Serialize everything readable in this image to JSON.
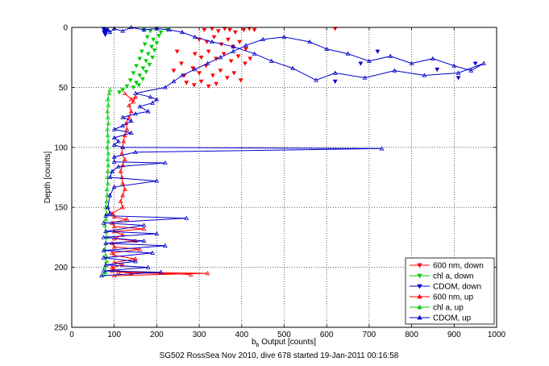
{
  "caption": "SG502 RossSea Nov 2010, dive 678 started 19-Jan-2011 00:16:58",
  "chart_data": {
    "type": "scatter",
    "xlabel_main": "b",
    "xlabel_sub": "b",
    "xlabel_rest": " Output [counts]",
    "ylabel": "Depth [counts]",
    "xlim": [
      0,
      1000
    ],
    "ylim": [
      250,
      0
    ],
    "xticks": [
      0,
      100,
      200,
      300,
      400,
      500,
      600,
      700,
      800,
      900,
      1000
    ],
    "yticks": [
      0,
      50,
      100,
      150,
      200,
      250
    ],
    "grid": true,
    "legend_position": "bottom-right",
    "series": [
      {
        "name": "600 nm, down",
        "color": "#ff0000",
        "marker": "triangle-down",
        "connected": false,
        "points": [
          [
            312,
            2
          ],
          [
            330,
            1
          ],
          [
            345,
            3
          ],
          [
            360,
            1
          ],
          [
            372,
            2
          ],
          [
            385,
            4
          ],
          [
            405,
            2
          ],
          [
            418,
            1
          ],
          [
            430,
            2
          ],
          [
            620,
            1
          ],
          [
            300,
            10
          ],
          [
            318,
            12
          ],
          [
            335,
            8
          ],
          [
            352,
            14
          ],
          [
            368,
            10
          ],
          [
            380,
            16
          ],
          [
            395,
            12
          ],
          [
            410,
            18
          ],
          [
            290,
            22
          ],
          [
            305,
            25
          ],
          [
            322,
            20
          ],
          [
            340,
            26
          ],
          [
            358,
            22
          ],
          [
            375,
            28
          ],
          [
            392,
            24
          ],
          [
            408,
            30
          ],
          [
            420,
            26
          ],
          [
            285,
            34
          ],
          [
            300,
            38
          ],
          [
            316,
            32
          ],
          [
            332,
            40
          ],
          [
            350,
            36
          ],
          [
            366,
            42
          ],
          [
            382,
            38
          ],
          [
            398,
            44
          ],
          [
            270,
            46
          ],
          [
            288,
            48
          ],
          [
            305,
            45
          ],
          [
            322,
            49
          ],
          [
            340,
            47
          ],
          [
            258,
            30
          ],
          [
            248,
            20
          ],
          [
            265,
            40
          ],
          [
            240,
            36
          ]
        ]
      },
      {
        "name": "chl a, down",
        "color": "#00cc00",
        "marker": "triangle-down",
        "connected": false,
        "points": [
          [
            170,
            2
          ],
          [
            185,
            3
          ],
          [
            200,
            1
          ],
          [
            210,
            4
          ],
          [
            225,
            2
          ],
          [
            178,
            8
          ],
          [
            192,
            10
          ],
          [
            205,
            7
          ],
          [
            172,
            14
          ],
          [
            188,
            16
          ],
          [
            200,
            13
          ],
          [
            165,
            20
          ],
          [
            180,
            22
          ],
          [
            195,
            19
          ],
          [
            160,
            26
          ],
          [
            175,
            28
          ],
          [
            190,
            25
          ],
          [
            152,
            32
          ],
          [
            168,
            34
          ],
          [
            183,
            31
          ],
          [
            145,
            38
          ],
          [
            160,
            40
          ],
          [
            175,
            37
          ],
          [
            138,
            44
          ],
          [
            152,
            46
          ],
          [
            167,
            43
          ],
          [
            130,
            49
          ],
          [
            145,
            50
          ],
          [
            158,
            48
          ],
          [
            120,
            52
          ],
          [
            112,
            54
          ]
        ]
      },
      {
        "name": "CDOM, down",
        "color": "#0000cc",
        "marker": "triangle-down",
        "connected": false,
        "points": [
          [
            75,
            1
          ],
          [
            78,
            3
          ],
          [
            80,
            5
          ],
          [
            82,
            2
          ],
          [
            76,
            4
          ],
          [
            79,
            6
          ],
          [
            77,
            2
          ],
          [
            81,
            4
          ],
          [
            620,
            45
          ],
          [
            680,
            30
          ],
          [
            720,
            20
          ],
          [
            950,
            30
          ],
          [
            910,
            42
          ],
          [
            860,
            35
          ]
        ]
      },
      {
        "name": "600 nm, up",
        "color": "#ff0000",
        "marker": "triangle-up",
        "connected": true,
        "points": [
          [
            100,
            207
          ],
          [
            320,
            205
          ],
          [
            110,
            204
          ],
          [
            280,
            206
          ],
          [
            95,
            203
          ],
          [
            140,
            205
          ],
          [
            100,
            202
          ],
          [
            95,
            200
          ],
          [
            120,
            198
          ],
          [
            100,
            196
          ],
          [
            150,
            193
          ],
          [
            100,
            190
          ],
          [
            95,
            188
          ],
          [
            160,
            185
          ],
          [
            100,
            183
          ],
          [
            95,
            180
          ],
          [
            150,
            178
          ],
          [
            100,
            176
          ],
          [
            120,
            173
          ],
          [
            100,
            170
          ],
          [
            170,
            168
          ],
          [
            100,
            166
          ],
          [
            95,
            163
          ],
          [
            130,
            160
          ],
          [
            100,
            158
          ],
          [
            95,
            155
          ],
          [
            120,
            150
          ],
          [
            115,
            145
          ],
          [
            120,
            140
          ],
          [
            125,
            135
          ],
          [
            120,
            130
          ],
          [
            118,
            125
          ],
          [
            115,
            120
          ],
          [
            120,
            115
          ],
          [
            125,
            110
          ],
          [
            118,
            105
          ],
          [
            120,
            100
          ],
          [
            122,
            95
          ],
          [
            125,
            90
          ],
          [
            130,
            85
          ],
          [
            128,
            80
          ],
          [
            135,
            75
          ],
          [
            140,
            70
          ],
          [
            135,
            65
          ],
          [
            145,
            62
          ],
          [
            150,
            58
          ],
          [
            140,
            60
          ],
          [
            125,
            55
          ]
        ]
      },
      {
        "name": "chl a, up",
        "color": "#00cc00",
        "marker": "triangle-up",
        "connected": true,
        "points": [
          [
            75,
            206
          ],
          [
            80,
            204
          ],
          [
            78,
            200
          ],
          [
            82,
            195
          ],
          [
            80,
            190
          ],
          [
            78,
            185
          ],
          [
            80,
            180
          ],
          [
            82,
            175
          ],
          [
            80,
            170
          ],
          [
            78,
            165
          ],
          [
            80,
            160
          ],
          [
            82,
            155
          ],
          [
            80,
            150
          ],
          [
            82,
            145
          ],
          [
            84,
            140
          ],
          [
            83,
            135
          ],
          [
            85,
            130
          ],
          [
            84,
            125
          ],
          [
            85,
            120
          ],
          [
            86,
            115
          ],
          [
            85,
            110
          ],
          [
            86,
            105
          ],
          [
            84,
            100
          ],
          [
            86,
            95
          ],
          [
            85,
            90
          ],
          [
            84,
            85
          ],
          [
            86,
            80
          ],
          [
            85,
            75
          ],
          [
            84,
            70
          ],
          [
            86,
            65
          ],
          [
            85,
            60
          ],
          [
            88,
            55
          ],
          [
            90,
            52
          ]
        ]
      },
      {
        "name": "CDOM, up",
        "color": "#0000cc",
        "marker": "triangle-up",
        "connected": true,
        "points": [
          [
            70,
            207
          ],
          [
            210,
            204
          ],
          [
            75,
            203
          ],
          [
            180,
            200
          ],
          [
            80,
            198
          ],
          [
            150,
            195
          ],
          [
            75,
            192
          ],
          [
            190,
            188
          ],
          [
            75,
            186
          ],
          [
            220,
            182
          ],
          [
            80,
            180
          ],
          [
            170,
            178
          ],
          [
            75,
            175
          ],
          [
            200,
            172
          ],
          [
            80,
            170
          ],
          [
            170,
            165
          ],
          [
            75,
            163
          ],
          [
            270,
            159
          ],
          [
            80,
            157
          ],
          [
            90,
            155
          ],
          [
            85,
            150
          ],
          [
            90,
            140
          ],
          [
            100,
            133
          ],
          [
            200,
            128
          ],
          [
            90,
            125
          ],
          [
            95,
            120
          ],
          [
            110,
            116
          ],
          [
            220,
            113
          ],
          [
            100,
            112
          ],
          [
            100,
            108
          ],
          [
            150,
            104
          ],
          [
            730,
            101
          ],
          [
            120,
            100
          ],
          [
            100,
            98
          ],
          [
            110,
            95
          ],
          [
            100,
            92
          ],
          [
            140,
            88
          ],
          [
            100,
            85
          ],
          [
            120,
            82
          ],
          [
            140,
            78
          ],
          [
            120,
            75
          ],
          [
            150,
            72
          ],
          [
            180,
            70
          ],
          [
            160,
            66
          ],
          [
            190,
            63
          ],
          [
            200,
            60
          ],
          [
            185,
            58
          ],
          [
            150,
            55
          ],
          [
            220,
            50
          ],
          [
            240,
            45
          ],
          [
            260,
            40
          ],
          [
            290,
            35
          ],
          [
            320,
            30
          ],
          [
            350,
            25
          ],
          [
            380,
            20
          ],
          [
            410,
            15
          ],
          [
            450,
            10
          ],
          [
            500,
            8
          ],
          [
            560,
            12
          ],
          [
            600,
            18
          ],
          [
            650,
            22
          ],
          [
            700,
            28
          ],
          [
            750,
            24
          ],
          [
            800,
            30
          ],
          [
            850,
            26
          ],
          [
            900,
            32
          ],
          [
            940,
            36
          ],
          [
            970,
            30
          ],
          [
            910,
            38
          ],
          [
            830,
            40
          ],
          [
            760,
            36
          ],
          [
            690,
            42
          ],
          [
            620,
            38
          ],
          [
            575,
            44
          ],
          [
            520,
            34
          ],
          [
            470,
            28
          ],
          [
            430,
            22
          ],
          [
            380,
            16
          ],
          [
            330,
            12
          ],
          [
            290,
            8
          ],
          [
            260,
            4
          ],
          [
            230,
            2
          ],
          [
            200,
            1
          ],
          [
            170,
            2
          ],
          [
            140,
            0
          ],
          [
            120,
            3
          ],
          [
            100,
            1
          ],
          [
            90,
            4
          ],
          [
            85,
            2
          ]
        ]
      }
    ]
  }
}
